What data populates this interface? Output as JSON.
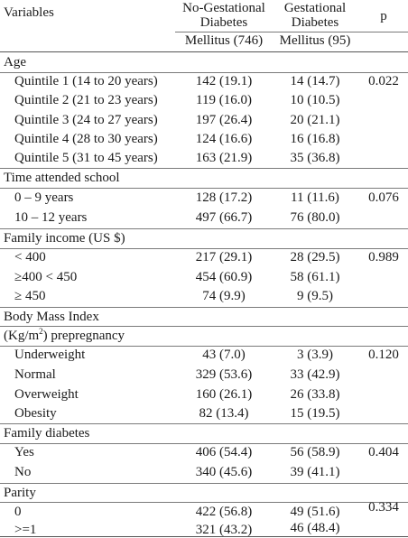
{
  "header": {
    "variables": "Variables",
    "col_no_gdm_line1": "No-Gestational",
    "col_no_gdm_line2": "Diabetes",
    "col_no_gdm_line3": "Mellitus (746)",
    "col_gdm_line1": "Gestational",
    "col_gdm_line2": "Diabetes",
    "col_gdm_line3": "Mellitus (95)",
    "col_p": "p"
  },
  "sections": {
    "age": {
      "title": "Age",
      "p": "0.022",
      "rows": [
        {
          "label": "Quintile 1 (14 to 20 years)",
          "no_gdm": "142 (19.1)",
          "gdm": "14 (14.7)"
        },
        {
          "label": "Quintile 2 (21 to 23 years)",
          "no_gdm": "119 (16.0)",
          "gdm": "10 (10.5)"
        },
        {
          "label": "Quintile 3 (24 to 27 years)",
          "no_gdm": "197 (26.4)",
          "gdm": "20 (21.1)"
        },
        {
          "label": "Quintile 4 (28 to 30 years)",
          "no_gdm": "124 (16.6)",
          "gdm": "16 (16.8)"
        },
        {
          "label": "Quintile 5 (31 to 45 years)",
          "no_gdm": "163 (21.9)",
          "gdm": "35 (36.8)"
        }
      ]
    },
    "school": {
      "title": "Time attended school",
      "p": "0.076",
      "rows": [
        {
          "label": "0 – 9 years",
          "no_gdm": "128 (17.2)",
          "gdm": "11 (11.6)"
        },
        {
          "label": "10 – 12 years",
          "no_gdm": "497 (66.7)",
          "gdm": "76 (80.0)"
        }
      ]
    },
    "income": {
      "title": "Family income (US $)",
      "p": "0.989",
      "rows": [
        {
          "label": "< 400",
          "no_gdm": "217 (29.1)",
          "gdm": "28 (29.5)"
        },
        {
          "label": "≥400 < 450",
          "no_gdm": "454 (60.9)",
          "gdm": "58 (61.1)"
        },
        {
          "label": "≥ 450",
          "no_gdm": "74 (9.9)",
          "gdm": "9 (9.5)"
        }
      ]
    },
    "bmi": {
      "title": "Body Mass Index",
      "subtitle_pre": "(Kg/m",
      "subtitle_sup": "2",
      "subtitle_post": ") prepregnancy",
      "p": "0.120",
      "rows": [
        {
          "label": "Underweight",
          "no_gdm": "43 (7.0)",
          "gdm": "3 (3.9)"
        },
        {
          "label": "Normal",
          "no_gdm": "329 (53.6)",
          "gdm": "33 (42.9)"
        },
        {
          "label": "Overweight",
          "no_gdm": "160 (26.1)",
          "gdm": "26 (33.8)"
        },
        {
          "label": "Obesity",
          "no_gdm": "82 (13.4)",
          "gdm": "15 (19.5)"
        }
      ]
    },
    "family_diabetes": {
      "title": "Family diabetes",
      "p": "0.404",
      "rows": [
        {
          "label": "Yes",
          "no_gdm": "406 (54.4)",
          "gdm": "56 (58.9)"
        },
        {
          "label": "No",
          "no_gdm": "340 (45.6)",
          "gdm": "39 (41.1)"
        }
      ]
    },
    "parity": {
      "title": "Parity",
      "p": "0.334",
      "rows": [
        {
          "label": "0",
          "no_gdm": "422 (56.8)",
          "gdm": "49 (51.6)"
        },
        {
          "label": ">=1",
          "no_gdm": "321 (43.2)",
          "gdm": "46 (48.4)"
        }
      ]
    }
  }
}
